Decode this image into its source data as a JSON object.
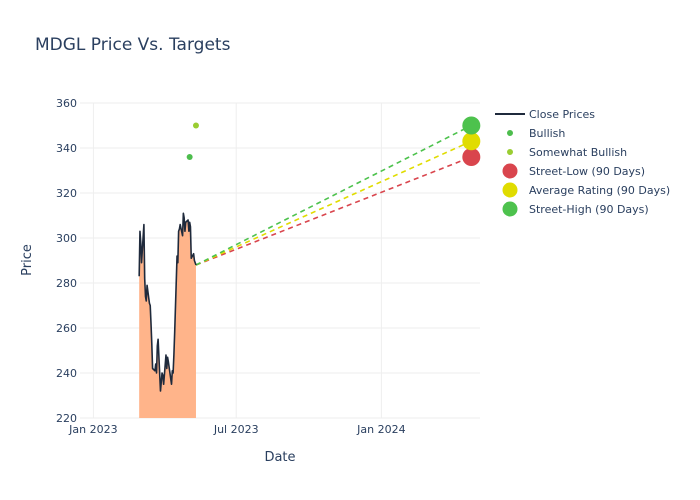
{
  "chart_data": {
    "type": "line",
    "title": "MDGL Price Vs. Targets",
    "xlabel": "Date",
    "ylabel": "Price",
    "ylim": [
      220,
      360
    ],
    "xlim": [
      "2022-12-15",
      "2024-05-05"
    ],
    "yticks": [
      220,
      240,
      260,
      280,
      300,
      320,
      340,
      360
    ],
    "xticks": [
      {
        "date": "2023-01-01",
        "label": "Jan 2023"
      },
      {
        "date": "2023-07-01",
        "label": "Jul 2023"
      },
      {
        "date": "2024-01-01",
        "label": "Jan 2024"
      }
    ],
    "grid": true,
    "legend_position": "right",
    "series": [
      {
        "name": "Close Prices",
        "kind": "line-area",
        "color": "#1f2a3c",
        "fill": "#ffb48a",
        "points": [
          [
            "2023-02-28",
            283
          ],
          [
            "2023-03-01",
            303
          ],
          [
            "2023-03-02",
            298
          ],
          [
            "2023-03-03",
            289
          ],
          [
            "2023-03-06",
            306
          ],
          [
            "2023-03-07",
            282
          ],
          [
            "2023-03-08",
            274
          ],
          [
            "2023-03-09",
            272
          ],
          [
            "2023-03-10",
            279
          ],
          [
            "2023-03-13",
            271
          ],
          [
            "2023-03-14",
            270
          ],
          [
            "2023-03-15",
            262
          ],
          [
            "2023-03-16",
            253
          ],
          [
            "2023-03-17",
            242
          ],
          [
            "2023-03-20",
            241
          ],
          [
            "2023-03-21",
            244
          ],
          [
            "2023-03-22",
            240
          ],
          [
            "2023-03-23",
            252
          ],
          [
            "2023-03-24",
            255
          ],
          [
            "2023-03-27",
            232
          ],
          [
            "2023-03-28",
            236
          ],
          [
            "2023-03-29",
            240
          ],
          [
            "2023-03-30",
            239
          ],
          [
            "2023-03-31",
            235
          ],
          [
            "2023-04-03",
            248
          ],
          [
            "2023-04-04",
            242
          ],
          [
            "2023-04-05",
            247
          ],
          [
            "2023-04-06",
            245
          ],
          [
            "2023-04-10",
            235
          ],
          [
            "2023-04-11",
            241
          ],
          [
            "2023-04-12",
            240
          ],
          [
            "2023-04-13",
            248
          ],
          [
            "2023-04-14",
            258
          ],
          [
            "2023-04-17",
            292
          ],
          [
            "2023-04-18",
            289
          ],
          [
            "2023-04-19",
            303
          ],
          [
            "2023-04-20",
            304
          ],
          [
            "2023-04-21",
            306
          ],
          [
            "2023-04-24",
            301
          ],
          [
            "2023-04-25",
            311
          ],
          [
            "2023-04-26",
            309
          ],
          [
            "2023-04-27",
            303
          ],
          [
            "2023-04-28",
            307
          ],
          [
            "2023-05-01",
            308
          ],
          [
            "2023-05-02",
            303
          ],
          [
            "2023-05-03",
            307
          ],
          [
            "2023-05-04",
            305
          ],
          [
            "2023-05-05",
            291
          ],
          [
            "2023-05-08",
            293
          ],
          [
            "2023-05-09",
            290
          ],
          [
            "2023-05-10",
            289
          ],
          [
            "2023-05-11",
            288
          ]
        ]
      },
      {
        "name": "Bullish",
        "kind": "marker",
        "color": "#4dbd4d",
        "points": [
          [
            "2023-05-03",
            336
          ]
        ]
      },
      {
        "name": "Somewhat Bullish",
        "kind": "marker",
        "color": "#9acd32",
        "points": [
          [
            "2023-05-11",
            350
          ]
        ]
      },
      {
        "name": "Street-Low (90 Days)",
        "kind": "target",
        "color": "#d9454d",
        "points": [
          [
            "2023-05-11",
            288
          ],
          [
            "2024-04-24",
            336
          ]
        ]
      },
      {
        "name": "Average Rating (90 Days)",
        "kind": "target",
        "color": "#e0dc00",
        "points": [
          [
            "2023-05-11",
            288
          ],
          [
            "2024-04-24",
            343
          ]
        ]
      },
      {
        "name": "Street-High (90 Days)",
        "kind": "target",
        "color": "#4dc24d",
        "points": [
          [
            "2023-05-11",
            288
          ],
          [
            "2024-04-24",
            350
          ]
        ]
      }
    ]
  }
}
